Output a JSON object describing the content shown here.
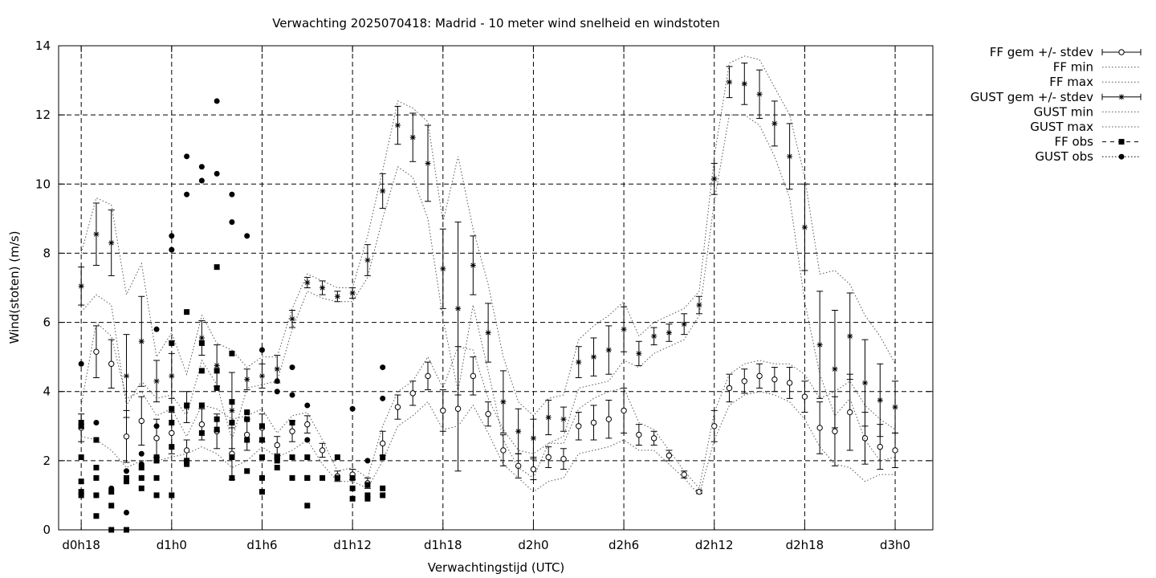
{
  "chart_data": {
    "type": "line",
    "title": "Verwachting 2025070418: Madrid - 10 meter wind snelheid en windstoten",
    "xlabel": "Verwachtingstijd (UTC)",
    "ylabel": "Wind(stoten) (m/s)",
    "xunit": "hours since d0h0",
    "xlim": [
      16.5,
      74.5
    ],
    "ylim": [
      0,
      14
    ],
    "yticks": [
      0,
      2,
      4,
      6,
      8,
      10,
      12,
      14
    ],
    "xticks": [
      {
        "x": 18,
        "label": "d0h18"
      },
      {
        "x": 24,
        "label": "d1h0"
      },
      {
        "x": 30,
        "label": "d1h6"
      },
      {
        "x": 36,
        "label": "d1h12"
      },
      {
        "x": 42,
        "label": "d1h18"
      },
      {
        "x": 48,
        "label": "d2h0"
      },
      {
        "x": 54,
        "label": "d2h6"
      },
      {
        "x": 60,
        "label": "d2h12"
      },
      {
        "x": 66,
        "label": "d2h18"
      },
      {
        "x": 72,
        "label": "d3h0"
      }
    ],
    "grid": true,
    "legend_position": "outside-right",
    "series": [
      {
        "name": "FF gem +/- stdev",
        "style": "errorbar-open-circle",
        "x": [
          18,
          19,
          20,
          21,
          22,
          23,
          24,
          25,
          26,
          27,
          28,
          29,
          30,
          31,
          32,
          33,
          34,
          35,
          36,
          37,
          38,
          39,
          40,
          41,
          42,
          43,
          44,
          45,
          46,
          47,
          48,
          49,
          50,
          51,
          52,
          53,
          54,
          55,
          56,
          57,
          58,
          59,
          60,
          61,
          62,
          63,
          64,
          65,
          66,
          67,
          68,
          69,
          70,
          71,
          72
        ],
        "y": [
          2.95,
          5.15,
          4.8,
          2.7,
          3.15,
          2.65,
          2.8,
          2.3,
          3.05,
          2.85,
          2.2,
          2.75,
          2.95,
          2.45,
          2.85,
          3.05,
          2.3,
          1.55,
          1.6,
          1.35,
          2.5,
          3.55,
          3.95,
          4.45,
          3.45,
          3.5,
          4.45,
          3.35,
          2.3,
          1.85,
          1.75,
          2.1,
          2.05,
          3.0,
          3.1,
          3.2,
          3.45,
          2.75,
          2.65,
          2.15,
          1.6,
          1.1,
          3.0,
          4.1,
          4.3,
          4.45,
          4.35,
          4.25,
          3.85,
          2.95,
          2.85,
          3.4,
          2.65,
          2.4,
          2.3
        ],
        "stdev": [
          0.4,
          0.75,
          0.7,
          0.75,
          0.7,
          0.55,
          0.6,
          0.3,
          0.45,
          0.5,
          0.75,
          0.45,
          0.4,
          0.25,
          0.3,
          0.25,
          0.2,
          0.15,
          0.15,
          0.15,
          0.35,
          0.35,
          0.35,
          0.4,
          0.6,
          1.8,
          0.55,
          0.35,
          0.45,
          0.35,
          0.3,
          0.3,
          0.3,
          0.4,
          0.5,
          0.55,
          0.65,
          0.3,
          0.2,
          0.15,
          0.1,
          0.05,
          0.45,
          0.4,
          0.35,
          0.35,
          0.35,
          0.45,
          0.45,
          0.75,
          1.0,
          1.1,
          0.75,
          0.65,
          0.5
        ]
      },
      {
        "name": "FF min",
        "style": "dotted",
        "x": [
          18,
          19,
          20,
          21,
          22,
          23,
          24,
          25,
          26,
          27,
          28,
          29,
          30,
          31,
          32,
          33,
          34,
          35,
          36,
          37,
          38,
          39,
          40,
          41,
          42,
          43,
          44,
          45,
          46,
          47,
          48,
          49,
          50,
          51,
          52,
          53,
          54,
          55,
          56,
          57,
          58,
          59,
          60,
          61,
          62,
          63,
          64,
          65,
          66,
          67,
          68,
          69,
          70,
          71,
          72
        ],
        "y": [
          2.7,
          2.6,
          2.3,
          1.8,
          2.0,
          2.0,
          2.1,
          2.2,
          2.4,
          2.2,
          1.8,
          2.0,
          2.4,
          2.1,
          2.3,
          2.6,
          1.9,
          1.4,
          1.4,
          1.2,
          2.0,
          3.0,
          3.3,
          3.7,
          2.9,
          3.0,
          3.6,
          2.8,
          1.9,
          1.5,
          1.1,
          1.4,
          1.5,
          2.2,
          2.3,
          2.4,
          2.6,
          2.3,
          2.3,
          1.9,
          1.5,
          1.0,
          2.6,
          3.6,
          3.9,
          4.0,
          3.9,
          3.7,
          3.2,
          2.4,
          1.9,
          1.8,
          1.4,
          1.6,
          1.6
        ]
      },
      {
        "name": "FF max",
        "style": "dotted",
        "x": [
          18,
          19,
          20,
          21,
          22,
          23,
          24,
          25,
          26,
          27,
          28,
          29,
          30,
          31,
          32,
          33,
          34,
          35,
          36,
          37,
          38,
          39,
          40,
          41,
          42,
          43,
          44,
          45,
          46,
          47,
          48,
          49,
          50,
          51,
          52,
          53,
          54,
          55,
          56,
          57,
          58,
          59,
          60,
          61,
          62,
          63,
          64,
          65,
          66,
          67,
          68,
          69,
          70,
          71,
          72
        ],
        "y": [
          3.6,
          6.0,
          5.6,
          3.8,
          4.0,
          3.3,
          3.5,
          2.7,
          3.6,
          3.5,
          3.2,
          3.3,
          3.5,
          2.8,
          3.3,
          3.4,
          2.6,
          1.7,
          1.8,
          1.5,
          3.0,
          4.0,
          4.3,
          5.0,
          4.1,
          5.3,
          5.2,
          3.8,
          2.9,
          2.3,
          2.2,
          2.5,
          2.5,
          3.5,
          3.8,
          4.0,
          4.1,
          3.1,
          2.9,
          2.3,
          1.7,
          1.2,
          3.4,
          4.5,
          4.8,
          4.9,
          4.8,
          4.8,
          4.5,
          3.8,
          4.0,
          4.3,
          3.6,
          3.2,
          2.9
        ]
      },
      {
        "name": "GUST gem +/- stdev",
        "style": "errorbar-star",
        "x": [
          18,
          19,
          20,
          21,
          22,
          23,
          24,
          25,
          26,
          27,
          28,
          29,
          30,
          31,
          32,
          33,
          34,
          35,
          36,
          37,
          38,
          39,
          40,
          41,
          42,
          43,
          44,
          45,
          46,
          47,
          48,
          49,
          50,
          51,
          52,
          53,
          54,
          55,
          56,
          57,
          58,
          59,
          60,
          61,
          62,
          63,
          64,
          65,
          66,
          67,
          68,
          69,
          70,
          71,
          72
        ],
        "y": [
          7.05,
          8.55,
          8.3,
          4.45,
          5.45,
          4.3,
          4.45,
          3.55,
          5.55,
          4.75,
          3.45,
          4.35,
          4.45,
          4.65,
          6.1,
          7.15,
          7.0,
          6.75,
          6.85,
          7.8,
          9.8,
          11.7,
          11.35,
          10.6,
          7.55,
          6.4,
          7.65,
          5.7,
          3.7,
          2.85,
          2.65,
          3.25,
          3.2,
          4.85,
          5.0,
          5.2,
          5.8,
          5.1,
          5.6,
          5.7,
          5.95,
          6.5,
          10.15,
          12.95,
          12.9,
          12.6,
          11.75,
          10.8,
          8.75,
          5.35,
          4.65,
          5.6,
          4.25,
          3.75,
          3.55
        ],
        "stdev": [
          0.55,
          0.9,
          0.95,
          1.2,
          1.3,
          0.6,
          0.65,
          0.45,
          0.5,
          0.6,
          1.1,
          0.3,
          0.35,
          0.4,
          0.25,
          0.15,
          0.2,
          0.15,
          0.15,
          0.45,
          0.5,
          0.55,
          0.7,
          1.1,
          1.15,
          2.5,
          0.85,
          0.85,
          0.9,
          0.65,
          0.55,
          0.5,
          0.35,
          0.45,
          0.55,
          0.7,
          0.65,
          0.35,
          0.25,
          0.25,
          0.3,
          0.25,
          0.45,
          0.45,
          0.6,
          0.7,
          0.65,
          0.95,
          1.25,
          1.55,
          1.7,
          1.25,
          1.25,
          1.05,
          0.75
        ]
      },
      {
        "name": "GUST min",
        "style": "dotted",
        "x": [
          18,
          19,
          20,
          21,
          22,
          23,
          24,
          25,
          26,
          27,
          28,
          29,
          30,
          31,
          32,
          33,
          34,
          35,
          36,
          37,
          38,
          39,
          40,
          41,
          42,
          43,
          44,
          45,
          46,
          47,
          48,
          49,
          50,
          51,
          52,
          53,
          54,
          55,
          56,
          57,
          58,
          59,
          60,
          61,
          62,
          63,
          64,
          65,
          66,
          67,
          68,
          69,
          70,
          71,
          72
        ],
        "y": [
          6.3,
          6.8,
          6.5,
          3.6,
          4.3,
          3.8,
          3.9,
          3.3,
          4.9,
          4.2,
          2.6,
          4.1,
          4.2,
          4.3,
          5.8,
          6.9,
          6.7,
          6.6,
          6.6,
          7.3,
          9.0,
          10.5,
          10.2,
          9.0,
          6.1,
          4.0,
          6.5,
          4.6,
          2.6,
          1.8,
          1.5,
          2.5,
          2.7,
          4.1,
          4.2,
          4.3,
          4.9,
          4.7,
          5.1,
          5.3,
          5.5,
          6.2,
          9.5,
          12.0,
          12.0,
          11.7,
          10.8,
          9.6,
          6.6,
          4.5,
          3.3,
          3.8,
          2.6,
          2.0,
          2.1
        ]
      },
      {
        "name": "GUST max",
        "style": "dotted",
        "x": [
          18,
          19,
          20,
          21,
          22,
          23,
          24,
          25,
          26,
          27,
          28,
          29,
          30,
          31,
          32,
          33,
          34,
          35,
          36,
          37,
          38,
          39,
          40,
          41,
          42,
          43,
          44,
          45,
          46,
          47,
          48,
          49,
          50,
          51,
          52,
          53,
          54,
          55,
          56,
          57,
          58,
          59,
          60,
          61,
          62,
          63,
          64,
          65,
          66,
          67,
          68,
          69,
          70,
          71,
          72
        ],
        "y": [
          8.0,
          9.6,
          9.4,
          6.8,
          7.7,
          5.0,
          5.7,
          4.5,
          6.2,
          5.4,
          5.2,
          4.7,
          5.0,
          5.0,
          6.4,
          7.4,
          7.2,
          7.0,
          7.0,
          8.5,
          10.4,
          12.4,
          12.2,
          11.8,
          8.9,
          10.8,
          8.7,
          7.1,
          5.0,
          3.7,
          3.3,
          3.8,
          3.9,
          5.5,
          5.9,
          6.2,
          6.6,
          5.6,
          6.0,
          6.2,
          6.4,
          6.9,
          10.8,
          13.5,
          13.7,
          13.6,
          12.8,
          12.0,
          10.2,
          7.4,
          7.5,
          7.1,
          6.2,
          5.6,
          4.8
        ]
      },
      {
        "name": "FF obs",
        "style": "square",
        "x": [
          18,
          18,
          18,
          18,
          18,
          18,
          19,
          19,
          19,
          19,
          19,
          20,
          20,
          20,
          21,
          21,
          21,
          22,
          22,
          22,
          23,
          23,
          23,
          23,
          24,
          24,
          24,
          24,
          24,
          25,
          25,
          25,
          25,
          26,
          26,
          26,
          26,
          27,
          27,
          27,
          27,
          27,
          28,
          28,
          28,
          28,
          28,
          29,
          29,
          29,
          29,
          30,
          30,
          30,
          30,
          30,
          31,
          31,
          31,
          31,
          32,
          32,
          32,
          33,
          33,
          33,
          33,
          34,
          35,
          35,
          36,
          36,
          36,
          37,
          37,
          37,
          38,
          38,
          38
        ],
        "y": [
          3.0,
          3.1,
          2.1,
          1.4,
          1.1,
          1.0,
          2.6,
          1.8,
          1.5,
          1.0,
          0.4,
          1.1,
          0.7,
          0.0,
          1.4,
          1.5,
          0.0,
          1.8,
          1.5,
          1.2,
          2.1,
          2.0,
          1.5,
          1.0,
          5.4,
          3.5,
          3.1,
          2.4,
          1.0,
          6.3,
          3.6,
          2.0,
          1.9,
          5.4,
          4.6,
          3.6,
          2.8,
          7.6,
          4.6,
          4.1,
          3.2,
          2.9,
          5.1,
          3.7,
          3.1,
          2.1,
          1.5,
          3.4,
          3.2,
          2.6,
          1.7,
          3.0,
          2.6,
          2.1,
          1.5,
          1.1,
          2.1,
          2.0,
          2.1,
          1.8,
          3.1,
          2.1,
          1.5,
          2.1,
          1.5,
          1.5,
          0.7,
          1.5,
          1.5,
          2.1,
          1.5,
          1.2,
          0.9,
          1.3,
          1.0,
          0.9,
          2.1,
          1.2,
          1.0
        ]
      },
      {
        "name": "GUST obs",
        "style": "dot",
        "x": [
          18,
          19,
          19,
          20,
          21,
          21,
          22,
          22,
          22,
          23,
          23,
          24,
          24,
          25,
          25,
          26,
          26,
          27,
          27,
          28,
          28,
          29,
          29,
          30,
          31,
          31,
          32,
          32,
          33,
          33,
          35,
          36,
          37,
          38,
          38
        ],
        "y": [
          4.8,
          3.1,
          1.0,
          1.2,
          1.7,
          0.5,
          2.2,
          1.9,
          1.5,
          5.8,
          3.0,
          8.5,
          8.1,
          10.8,
          9.7,
          10.5,
          10.1,
          12.4,
          10.3,
          9.7,
          8.9,
          8.5,
          3.4,
          5.2,
          4.3,
          4.0,
          4.7,
          3.9,
          3.6,
          2.6,
          1.5,
          3.5,
          2.0,
          4.7,
          3.8
        ]
      }
    ]
  }
}
